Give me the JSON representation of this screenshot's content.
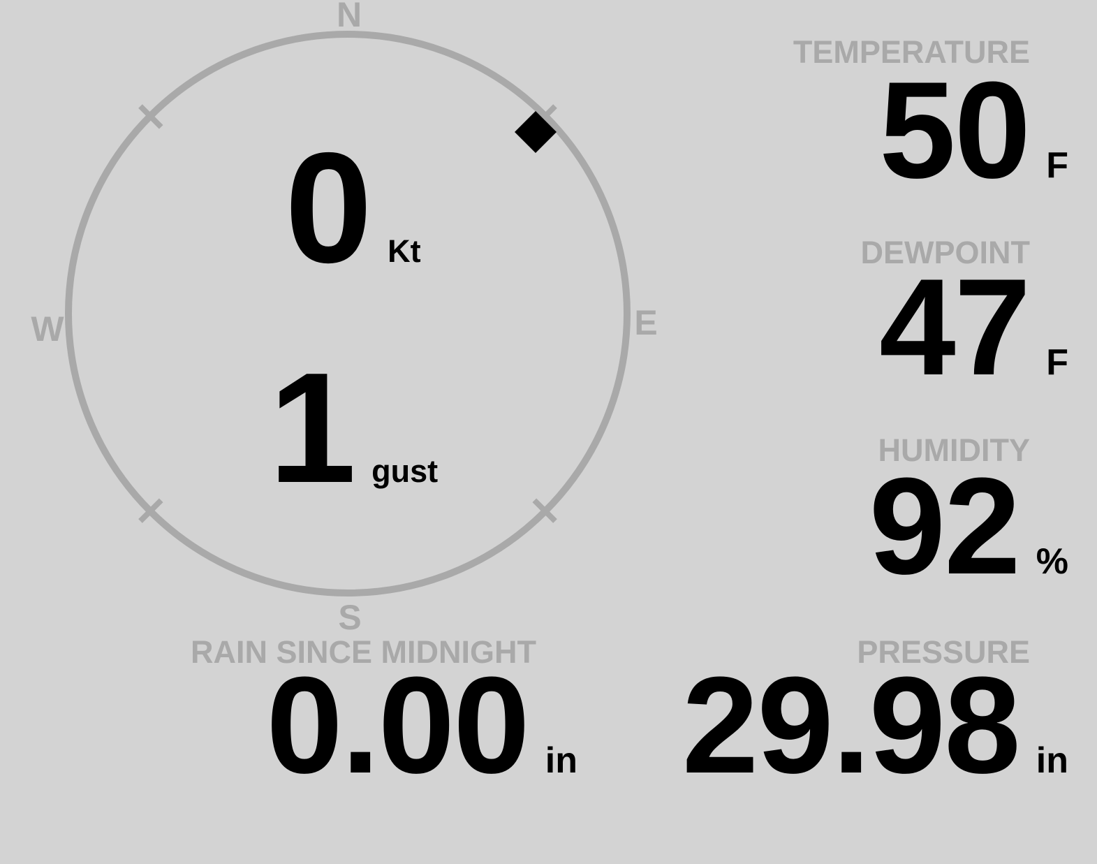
{
  "colors": {
    "background": "#d3d3d3",
    "dial_gray": "#a9a9a9",
    "value_black": "#000000"
  },
  "compass": {
    "cardinals": {
      "n": "N",
      "e": "E",
      "s": "S",
      "w": "W"
    },
    "wind_speed": {
      "value": "0",
      "unit": "Kt"
    },
    "wind_gust": {
      "value": "1",
      "unit": "gust"
    },
    "wind_direction_deg": 46,
    "marker": "diamond"
  },
  "metrics": {
    "temperature": {
      "label": "TEMPERATURE",
      "value": "50",
      "unit": "F"
    },
    "dewpoint": {
      "label": "DEWPOINT",
      "value": "47",
      "unit": "F"
    },
    "humidity": {
      "label": "HUMIDITY",
      "value": "92",
      "unit": "%"
    },
    "pressure": {
      "label": "PRESSURE",
      "value": "29.98",
      "unit": "in"
    },
    "rain": {
      "label": "RAIN SINCE MIDNIGHT",
      "value": "0.00",
      "unit": "in"
    }
  }
}
